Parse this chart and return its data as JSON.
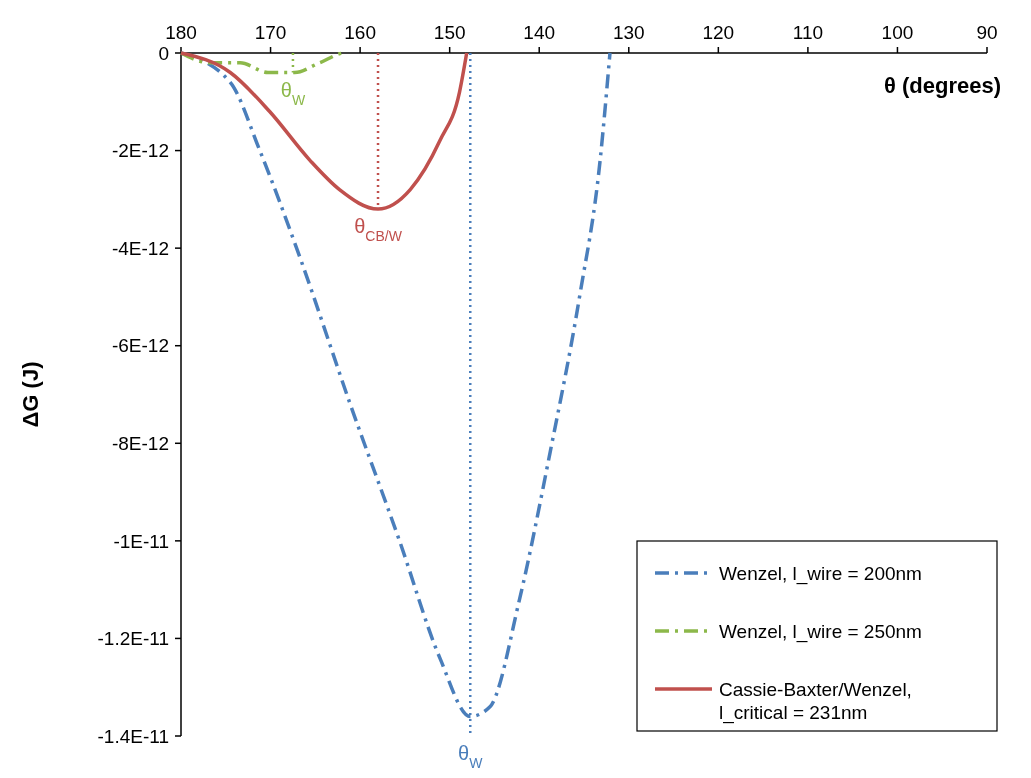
{
  "chart_data": {
    "type": "line",
    "xlabel": "θ (degrees)",
    "ylabel": "ΔG (J)",
    "xlim": [
      180,
      90
    ],
    "xticks": [
      180,
      170,
      160,
      150,
      140,
      130,
      120,
      110,
      100,
      90
    ],
    "ylim": [
      -1.4e-11,
      0
    ],
    "yticks": [
      0,
      {
        "value": -2e-12,
        "label": "-2E-12"
      },
      {
        "value": -4e-12,
        "label": "-4E-12"
      },
      {
        "value": -6e-12,
        "label": "-6E-12"
      },
      {
        "value": -8e-12,
        "label": "-8E-12"
      },
      {
        "value": -1e-11,
        "label": "-1E-11"
      },
      {
        "value": -1.2e-11,
        "label": "-1.2E-11"
      },
      {
        "value": -1.4e-11,
        "label": "-1.4E-11"
      }
    ],
    "grid": false,
    "legend": "bottom right",
    "marker": "none",
    "series": [
      {
        "name": "Wenzel, l_wire = 200nm",
        "color": "#4a7ebb",
        "line_style": "dashdot",
        "x": [
          180,
          174.5,
          171.2,
          166.7,
          161.1,
          155.6,
          151.1,
          147.7,
          145.5,
          142.2,
          138.8,
          135.5,
          133.2,
          132.1
        ],
        "values": [
          0,
          -6e-13,
          -2e-12,
          -4.2e-12,
          -7.2e-12,
          -1e-11,
          -1.24e-11,
          -1.36e-11,
          -1.34e-11,
          -1.12e-11,
          -8.2e-12,
          -5e-12,
          -2.2e-12,
          0
        ]
      },
      {
        "name": "Wenzel, l_wire = 250nm",
        "color": "#8cb84a",
        "line_style": "dashdot",
        "x": [
          180,
          176.8,
          173.4,
          170.3,
          167.3,
          164.5,
          161.7,
          161.5
        ],
        "values": [
          0,
          -2e-13,
          -2e-13,
          -4e-13,
          -4e-13,
          -2e-13,
          0,
          0
        ]
      },
      {
        "name": "Cassie-Baxter/Wenzel, l_critical = 231nm",
        "color": "#c0504d",
        "line_style": "solid",
        "x": [
          180,
          174.5,
          170.1,
          165.6,
          162.3,
          158,
          154.4,
          151.1,
          148.9,
          148.1
        ],
        "values": [
          0,
          -4e-13,
          -1.2e-12,
          -2.2e-12,
          -2.8e-12,
          -3.2e-12,
          -2.8e-12,
          -1.8e-12,
          -8e-13,
          0
        ]
      },
      {
        "color": "#8cb84a",
        "line_style": "dotted",
        "x": [
          167.5,
          167.5
        ],
        "values": [
          0,
          -4e-13
        ]
      },
      {
        "color": "#c0504d",
        "line_style": "dotted",
        "x": [
          158,
          158
        ],
        "values": [
          0,
          -3.2e-12
        ]
      },
      {
        "color": "#4a7ebb",
        "line_style": "dotted",
        "x": [
          147.7,
          147.7
        ],
        "values": [
          0,
          -1.4e-11
        ]
      }
    ],
    "annotations": [
      {
        "text": "θ$_{W}$",
        "x": 167.5,
        "y": -4e-13
      },
      {
        "text": "θ$_{CB/W}$",
        "x": 158,
        "y": -3.2e-12
      },
      {
        "text": "θ$_{W}$",
        "x": 147.7,
        "y": -1.4e-11
      }
    ]
  }
}
